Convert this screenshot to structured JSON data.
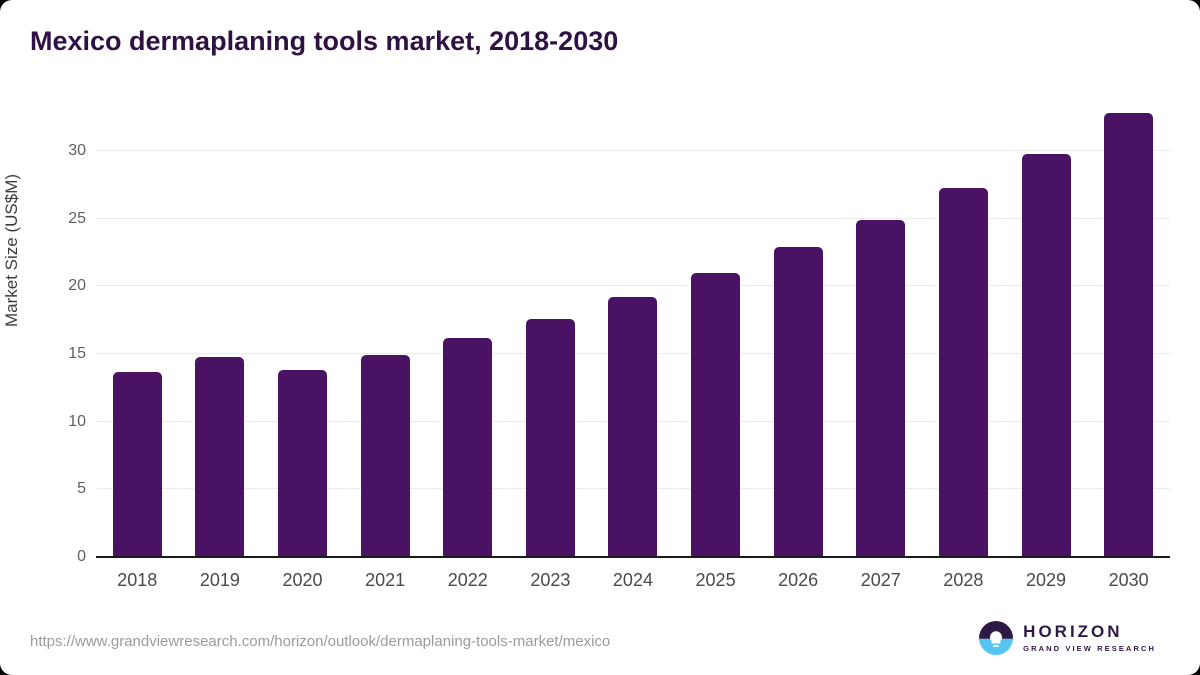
{
  "title": "Mexico dermaplaning tools market, 2018-2030",
  "chart_data": {
    "type": "bar",
    "categories": [
      "2018",
      "2019",
      "2020",
      "2021",
      "2022",
      "2023",
      "2024",
      "2025",
      "2026",
      "2027",
      "2028",
      "2029",
      "2030"
    ],
    "values": [
      13.7,
      14.8,
      13.8,
      14.9,
      16.2,
      17.6,
      19.2,
      21.0,
      22.9,
      24.9,
      27.3,
      29.8,
      32.8
    ],
    "title": "Mexico dermaplaning tools market, 2018-2030",
    "xlabel": "",
    "ylabel": "Market Size (US$M)",
    "ylim": [
      0,
      34
    ],
    "yticks": [
      0,
      5,
      10,
      15,
      20,
      25,
      30
    ],
    "grid": "horizontal",
    "legend": "none",
    "bar_color": "#4a1262"
  },
  "colors": {
    "title_text": "#2f1143",
    "bar": "#4a1262",
    "gridline": "#ebebeb",
    "axis_line": "#1a1a1a",
    "tick_text": "#5f5f5f",
    "url_text": "#9b9b9b",
    "logo_dark": "#2e1a47",
    "logo_blue": "#56c5f2"
  },
  "footer": {
    "source_url": "https://www.grandviewresearch.com/horizon/outlook/dermaplaning-tools-market/mexico",
    "logo_name": "HORIZON",
    "logo_subtext": "GRAND VIEW RESEARCH"
  }
}
